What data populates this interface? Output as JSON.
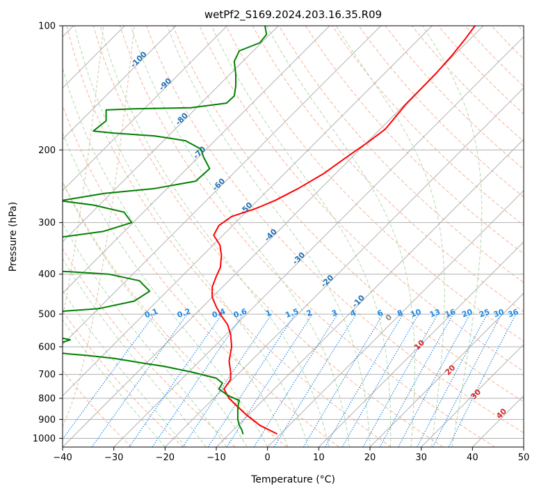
{
  "chart_data": {
    "type": "line",
    "title": "wetPf2_S169.2024.203.16.35.R09",
    "xlabel": "Temperature (°C)",
    "ylabel": "Pressure (hPa)",
    "xlim": [
      -40,
      50
    ],
    "ylim": [
      1050,
      100
    ],
    "y_scale": "log",
    "grid": true,
    "x_ticks": [
      "−40",
      "−30",
      "−20",
      "−10",
      "0",
      "10",
      "20",
      "30",
      "40",
      "50"
    ],
    "x_tick_values": [
      -40,
      -30,
      -20,
      -10,
      0,
      10,
      20,
      30,
      40,
      50
    ],
    "y_ticks": [
      "100",
      "200",
      "300",
      "400",
      "500",
      "600",
      "700",
      "800",
      "900",
      "1000"
    ],
    "y_tick_values": [
      100,
      200,
      300,
      400,
      500,
      600,
      700,
      800,
      900,
      1000
    ],
    "series": [
      {
        "color": "#ff0000",
        "points": [
          [
            1.8,
            975
          ],
          [
            -1.5,
            930
          ],
          [
            -4,
            880
          ],
          [
            -6,
            835
          ],
          [
            -7.5,
            800
          ],
          [
            -8.5,
            760
          ],
          [
            -7.2,
            720
          ],
          [
            -7.2,
            690
          ],
          [
            -7.5,
            650
          ],
          [
            -7,
            600
          ],
          [
            -7.2,
            560
          ],
          [
            -7.8,
            530
          ],
          [
            -9,
            505
          ],
          [
            -10,
            480
          ],
          [
            -10.8,
            455
          ],
          [
            -10.8,
            430
          ],
          [
            -10,
            405
          ],
          [
            -9.2,
            385
          ],
          [
            -9,
            360
          ],
          [
            -9.3,
            340
          ],
          [
            -10.5,
            322
          ],
          [
            -9.5,
            305
          ],
          [
            -7,
            290
          ],
          [
            -2.5,
            278
          ],
          [
            1.5,
            265
          ],
          [
            6,
            248
          ],
          [
            11,
            228
          ],
          [
            15,
            210
          ],
          [
            19.5,
            192
          ],
          [
            23,
            178
          ],
          [
            24,
            172
          ],
          [
            27,
            155
          ],
          [
            30,
            142
          ],
          [
            33,
            130
          ],
          [
            36,
            118
          ],
          [
            38.5,
            108
          ],
          [
            40.5,
            100
          ]
        ]
      },
      {
        "color": "#008000",
        "points": [
          [
            -4.8,
            975
          ],
          [
            -5,
            955
          ],
          [
            -5.5,
            930
          ],
          [
            -5.8,
            900
          ],
          [
            -5.8,
            870
          ],
          [
            -5.8,
            840
          ],
          [
            -5.5,
            810
          ],
          [
            -7.5,
            790
          ],
          [
            -9.5,
            760
          ],
          [
            -8.8,
            735
          ],
          [
            -10,
            715
          ],
          [
            -15,
            690
          ],
          [
            -20,
            670
          ],
          [
            -25,
            655
          ],
          [
            -30,
            640
          ],
          [
            -35,
            630
          ],
          [
            -39,
            624
          ],
          [
            -40,
            622
          ]
        ]
      },
      {
        "color": "#008000",
        "points": [
          [
            -40,
            572
          ],
          [
            -38.5,
            577
          ],
          [
            -40,
            585
          ]
        ]
      },
      {
        "color": "#008000",
        "points": [
          [
            -40,
            492
          ],
          [
            -33,
            485
          ],
          [
            -26,
            465
          ],
          [
            -23,
            440
          ],
          [
            -25,
            415
          ],
          [
            -31,
            400
          ],
          [
            -38,
            395
          ],
          [
            -40,
            394
          ]
        ]
      },
      {
        "color": "#008000",
        "points": [
          [
            -40,
            325
          ],
          [
            -32,
            315
          ],
          [
            -26.5,
            300
          ],
          [
            -28,
            283
          ],
          [
            -34,
            272
          ],
          [
            -40,
            266
          ]
        ]
      },
      {
        "color": "#008000",
        "points": [
          [
            -40,
            265
          ],
          [
            -32,
            255
          ],
          [
            -22,
            248
          ],
          [
            -14,
            238
          ],
          [
            -11.3,
            222
          ],
          [
            -12.5,
            208
          ],
          [
            -13,
            199
          ],
          [
            -16,
            190
          ],
          [
            -22,
            185
          ],
          [
            -30,
            182
          ],
          [
            -34,
            180
          ],
          [
            -31.5,
            170
          ],
          [
            -31.5,
            160
          ],
          [
            -26,
            159
          ],
          [
            -15,
            158
          ],
          [
            -8,
            154
          ],
          [
            -6.5,
            148
          ],
          [
            -6.2,
            140
          ],
          [
            -6.2,
            131
          ],
          [
            -6.5,
            122
          ],
          [
            -5.5,
            115
          ],
          [
            -1.5,
            110
          ],
          [
            -0.2,
            105
          ],
          [
            -0.5,
            100
          ]
        ]
      }
    ],
    "isotherm_labels": [
      "-100",
      "-90",
      "-80",
      "-70",
      "-60",
      "-50",
      "-40",
      "-30",
      "-20",
      "-10"
    ],
    "mixing_ratio_labels": [
      "0.1",
      "0.2",
      "0.4",
      "0.6",
      "1",
      "1.5",
      "2",
      "3",
      "4",
      "6",
      "8",
      "10",
      "13",
      "16",
      "20",
      "25",
      "30",
      "36"
    ],
    "theta_e_labels": [
      "0",
      "10",
      "20",
      "30",
      "40"
    ],
    "colors": {
      "temperature": "#ff0000",
      "dewpoint": "#008000",
      "isotherm_label": "#1f6fb4",
      "mixing_ratio": "#1e88e5",
      "dry_adiabat": "#f4a582",
      "moist_adiabat": "#a8d5a2",
      "theta_e_label": "#d62728",
      "zero_label": "#888888",
      "grid": "#b0b0b0"
    }
  }
}
